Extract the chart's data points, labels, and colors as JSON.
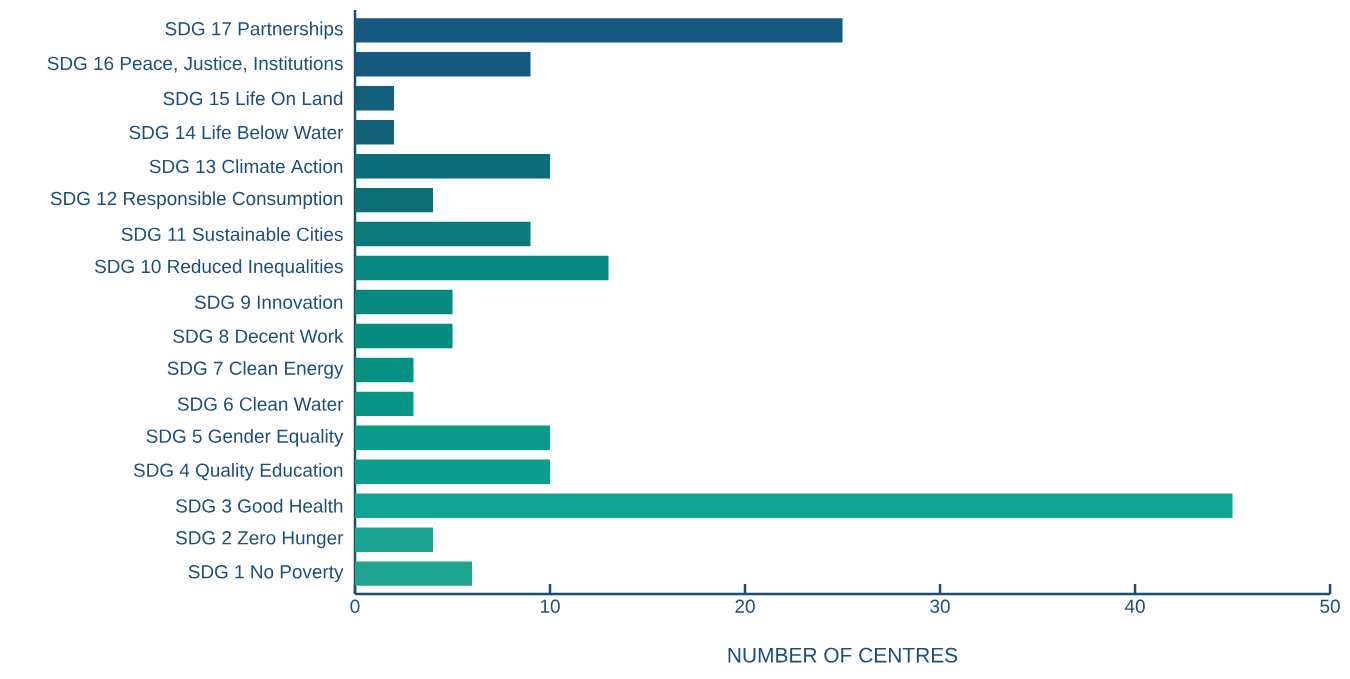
{
  "chart_data": {
    "type": "bar",
    "orientation": "horizontal",
    "categories": [
      "SDG 17 Partnerships",
      "SDG 16 Peace, Justice, Institutions",
      "SDG 15 Life On Land",
      "SDG 14 Life Below Water",
      "SDG 13 Climate Action",
      "SDG 12 Responsible Consumption",
      "SDG 11 Sustainable Cities",
      "SDG 10 Reduced Inequalities",
      "SDG 9 Innovation",
      "SDG 8 Decent Work",
      "SDG 7 Clean Energy",
      "SDG 6 Clean Water",
      "SDG 5 Gender Equality",
      "SDG 4 Quality Education",
      "SDG 3 Good Health",
      "SDG 2 Zero Hunger",
      "SDG 1 No Poverty"
    ],
    "values": [
      25,
      9,
      2,
      2,
      10,
      4,
      9,
      13,
      5,
      5,
      3,
      3,
      10,
      10,
      45,
      4,
      6
    ],
    "colors": [
      "#165a82",
      "#15597f",
      "#125f7c",
      "#126279",
      "#0b6d78",
      "#0e7077",
      "#0a7a7a",
      "#078880",
      "#078a80",
      "#058d80",
      "#059283",
      "#069685",
      "#099b89",
      "#0c9e8c",
      "#10a593",
      "#19a592",
      "#20a38f"
    ],
    "xlabel": "NUMBER OF CENTRES",
    "xlim": [
      0,
      50
    ],
    "xticks": [
      0,
      10,
      20,
      30,
      40,
      50
    ]
  }
}
